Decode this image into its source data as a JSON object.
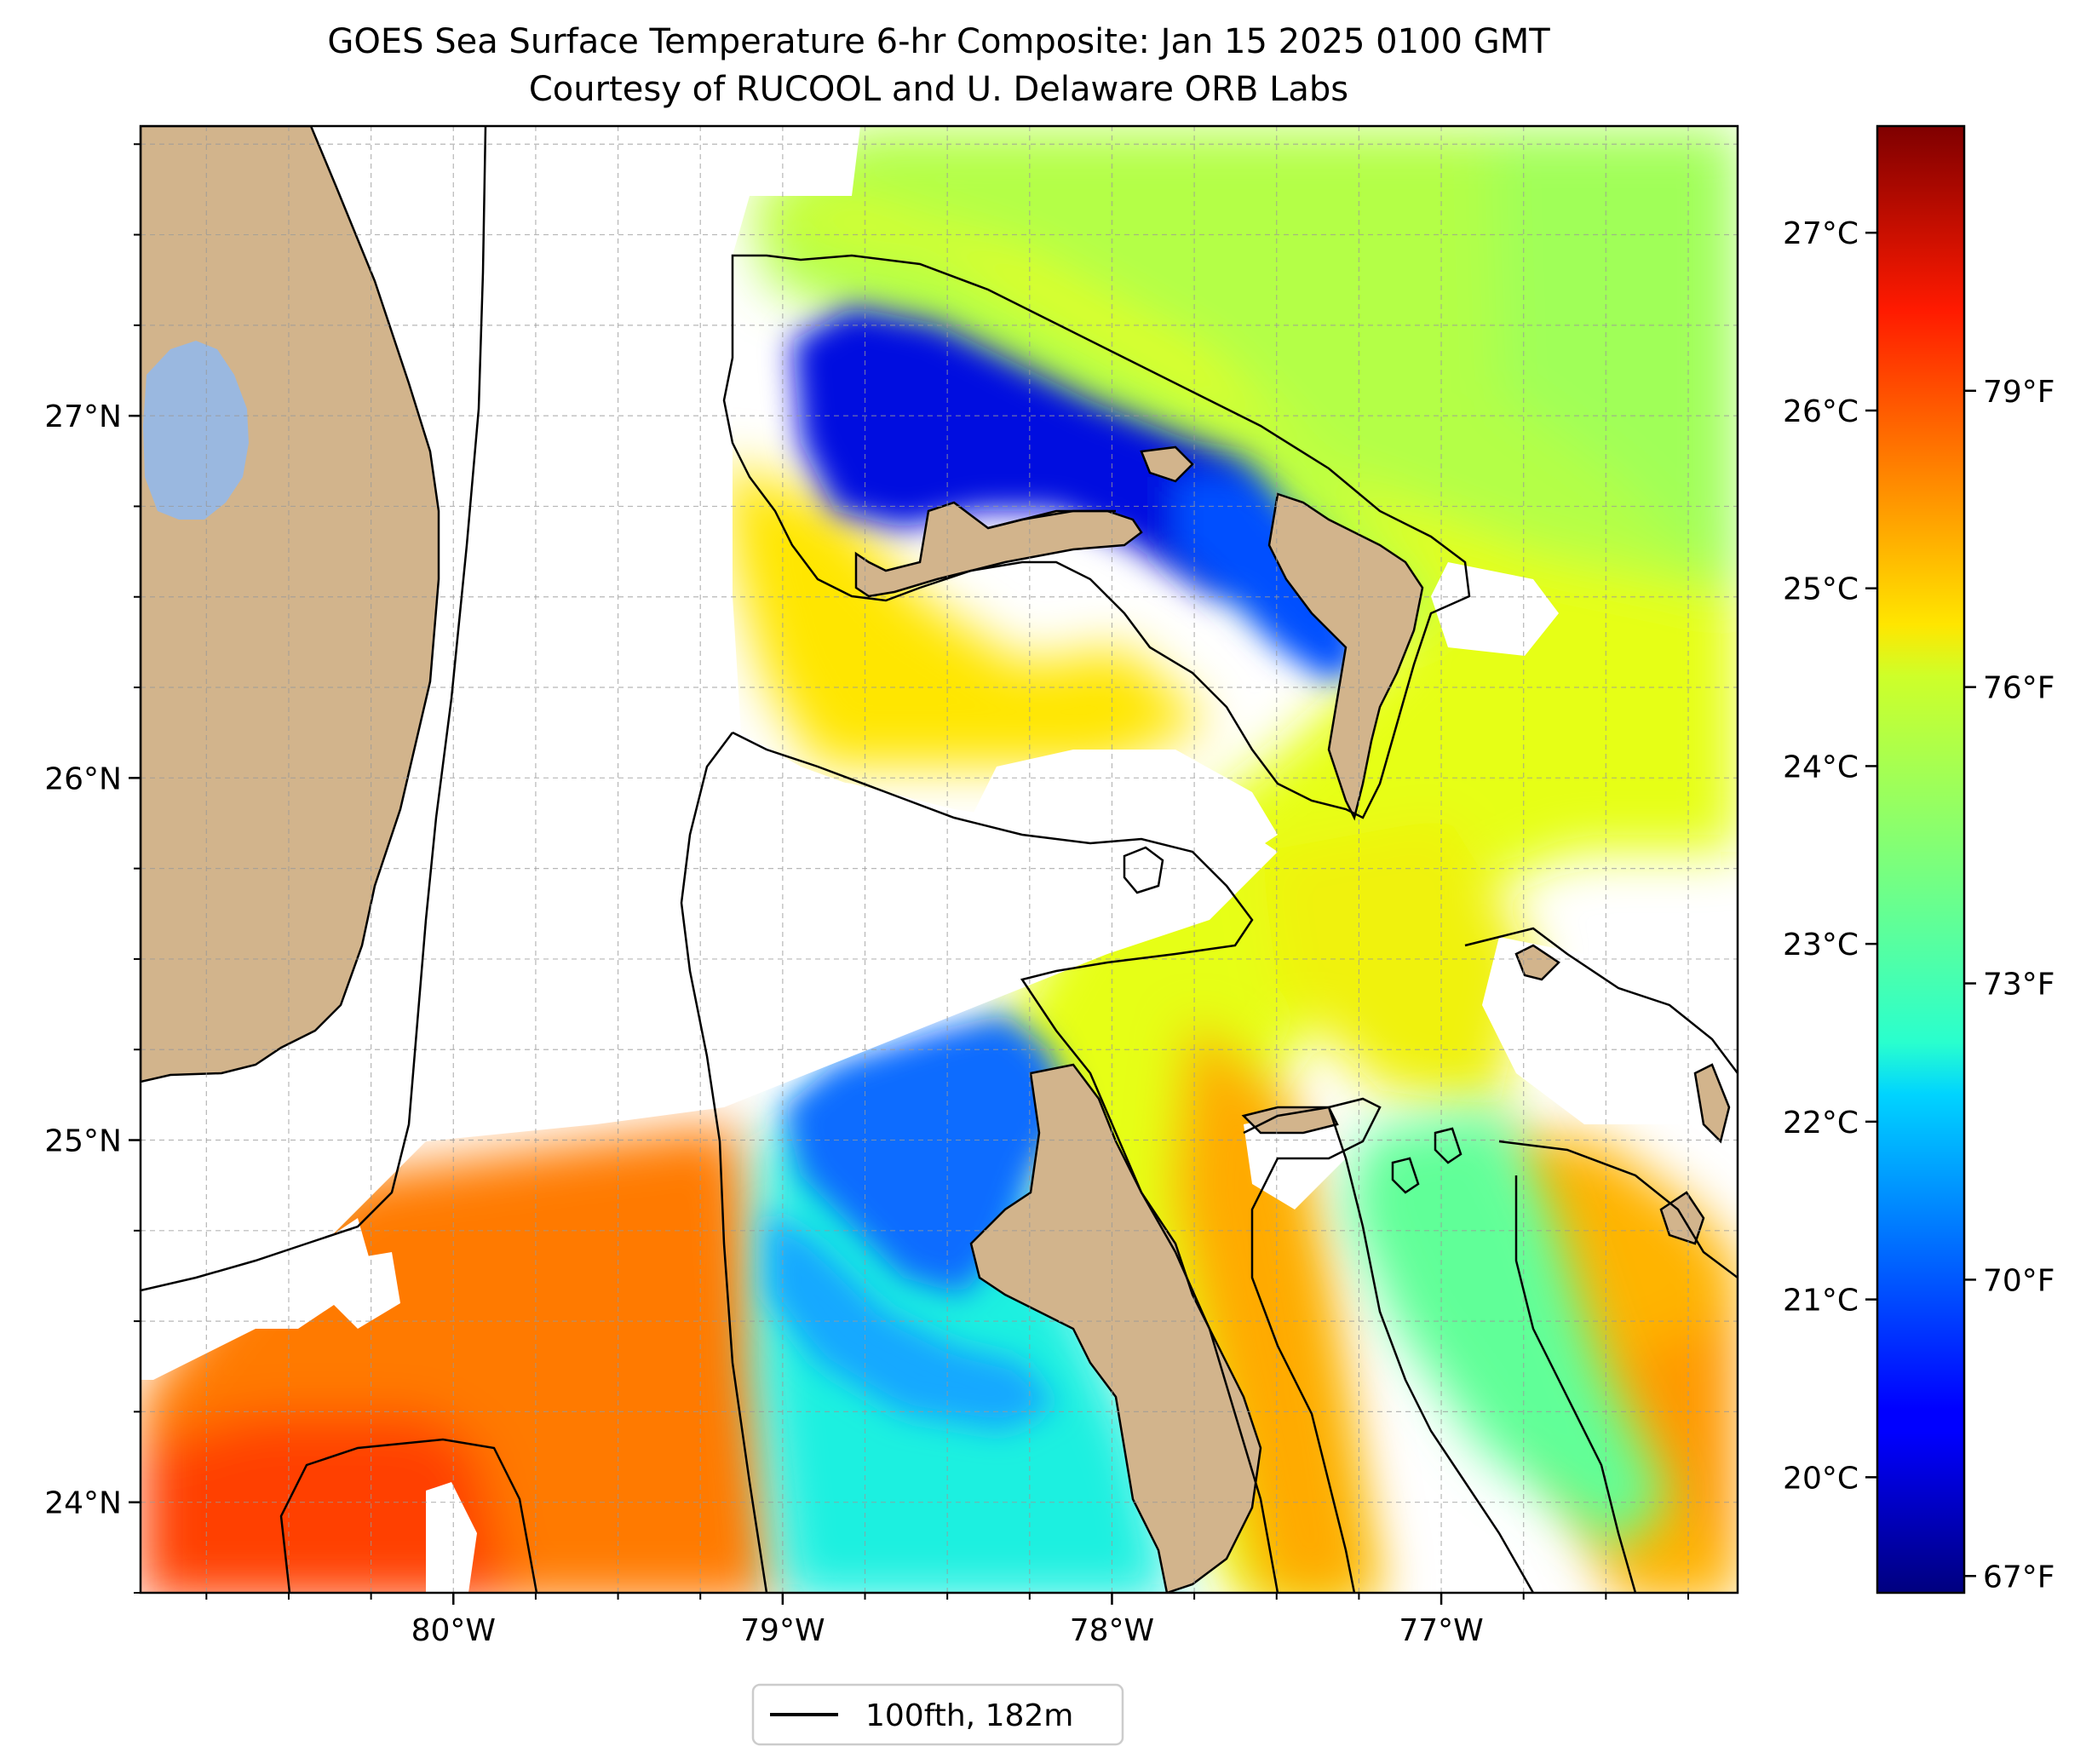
{
  "title": {
    "line1": "GOES Sea Surface Temperature 6-hr Composite: Jan 15 2025 0100 GMT",
    "line2": "Courtesy of RUCOOL and U. Delaware ORB Labs"
  },
  "map": {
    "lon_range": [
      -80.95,
      -76.1
    ],
    "lat_range": [
      23.75,
      27.8
    ],
    "lon_ticks": [
      {
        "value": -80,
        "label": "80°W"
      },
      {
        "value": -79,
        "label": "79°W"
      },
      {
        "value": -78,
        "label": "78°W"
      },
      {
        "value": -77,
        "label": "77°W"
      }
    ],
    "lat_ticks": [
      {
        "value": 24,
        "label": "24°N"
      },
      {
        "value": 25,
        "label": "25°N"
      },
      {
        "value": 26,
        "label": "26°N"
      },
      {
        "value": 27,
        "label": "27°N"
      }
    ],
    "gridlines": true,
    "land_color": "#d2b48c",
    "lake_color": "#9ab8e0",
    "no_data_color": "#ffffff"
  },
  "colorbar": {
    "colormap": "jet",
    "range_c": [
      19.35,
      27.6
    ],
    "celsius_ticks": [
      {
        "value": 20,
        "label": "20°C"
      },
      {
        "value": 21,
        "label": "21°C"
      },
      {
        "value": 22,
        "label": "22°C"
      },
      {
        "value": 23,
        "label": "23°C"
      },
      {
        "value": 24,
        "label": "24°C"
      },
      {
        "value": 25,
        "label": "25°C"
      },
      {
        "value": 26,
        "label": "26°C"
      },
      {
        "value": 27,
        "label": "27°C"
      }
    ],
    "fahrenheit_ticks": [
      {
        "value": 67,
        "label": "67°F"
      },
      {
        "value": 70,
        "label": "70°F"
      },
      {
        "value": 73,
        "label": "73°F"
      },
      {
        "value": 76,
        "label": "76°F"
      },
      {
        "value": 79,
        "label": "79°F"
      }
    ]
  },
  "legend": {
    "entry_label": "100fth, 182m",
    "location": "bottom-center"
  }
}
